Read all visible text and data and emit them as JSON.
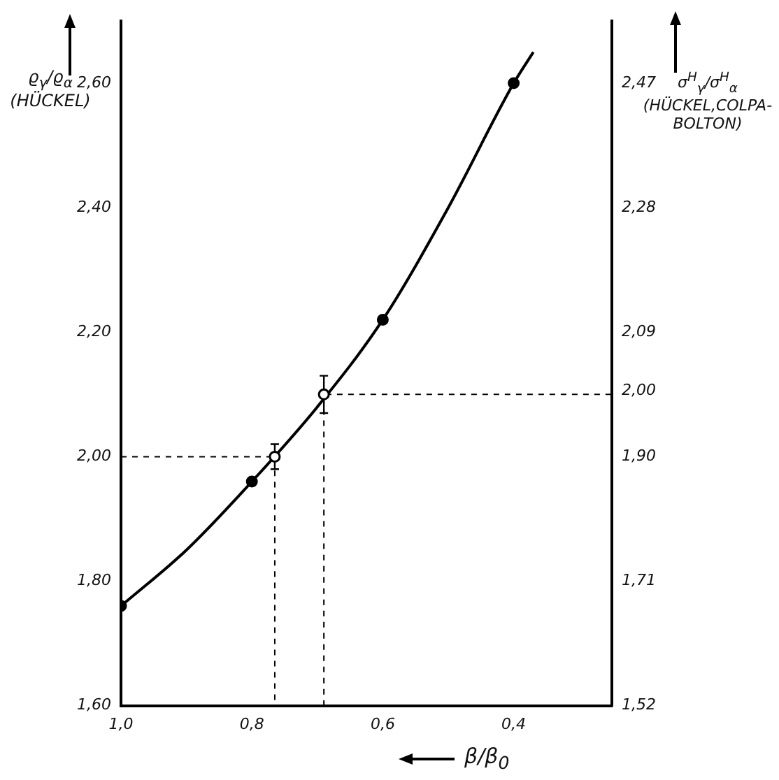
{
  "chart_data": {
    "type": "line",
    "xlabel": "β/β$_{0}$",
    "ylabel": "ϱ$_{γ}$/ϱ$_{α}$ (HÜCKEL)",
    "y2label": "σ$^{H}$$_{γ}$/σ$^{H}$$_{α}$ (HÜCKEL,COLPA-BOLTON)",
    "xlim": [
      1.0,
      0.25
    ],
    "xticks": [
      {
        "value": 1.0,
        "label": "1,0"
      },
      {
        "value": 0.8,
        "label": "0,8"
      },
      {
        "value": 0.6,
        "label": "0,6"
      },
      {
        "value": 0.4,
        "label": "0,4"
      }
    ],
    "ylim": [
      1.6,
      2.7
    ],
    "yticks": [
      {
        "value": 1.6,
        "label": "1,60"
      },
      {
        "value": 1.8,
        "label": "1,80"
      },
      {
        "value": 2.0,
        "label": "2,00"
      },
      {
        "value": 2.2,
        "label": "2,20"
      },
      {
        "value": 2.4,
        "label": "2,40"
      },
      {
        "value": 2.6,
        "label": "2,60"
      }
    ],
    "y2lim": [
      1.52,
      2.565
    ],
    "y2ticks": [
      {
        "value": 1.52,
        "label": "1,52"
      },
      {
        "value": 1.71,
        "label": "1,71"
      },
      {
        "value": 1.9,
        "label": "1,90"
      },
      {
        "value": 2.0,
        "label": "2,00"
      },
      {
        "value": 2.09,
        "label": "2,09"
      },
      {
        "value": 2.28,
        "label": "2,28"
      },
      {
        "value": 2.47,
        "label": "2,47"
      }
    ],
    "grid": false,
    "legend": false,
    "series": [
      {
        "type": "line",
        "color": "#000000",
        "marker": "none",
        "line_style": "solid",
        "x": [
          1.0,
          0.9,
          0.8,
          0.7,
          0.6,
          0.5,
          0.4,
          0.37
        ],
        "values": [
          1.76,
          1.85,
          1.96,
          2.08,
          2.22,
          2.4,
          2.6,
          2.65
        ]
      },
      {
        "type": "scatter",
        "color": "#000000",
        "marker": "circle",
        "x": [
          1.0,
          0.8,
          0.6,
          0.4
        ],
        "values": [
          1.76,
          1.96,
          2.22,
          2.6
        ]
      },
      {
        "type": "scatter",
        "color": "#ffffff",
        "marker": "circle",
        "x": [
          0.765,
          0.69
        ],
        "values": [
          2.0,
          2.1
        ],
        "errors": [
          0.02,
          0.03
        ]
      },
      {
        "type": "line",
        "color": "#000000",
        "marker": "none",
        "line_style": "dashed",
        "x": [
          1.0,
          0.765,
          0.765
        ],
        "values": [
          2.0,
          2.0,
          1.6
        ]
      },
      {
        "type": "line",
        "color": "#000000",
        "marker": "none",
        "line_style": "dashed",
        "x": [
          0.69,
          0.69,
          0.25
        ],
        "values": [
          1.6,
          2.1,
          2.1
        ]
      }
    ]
  }
}
